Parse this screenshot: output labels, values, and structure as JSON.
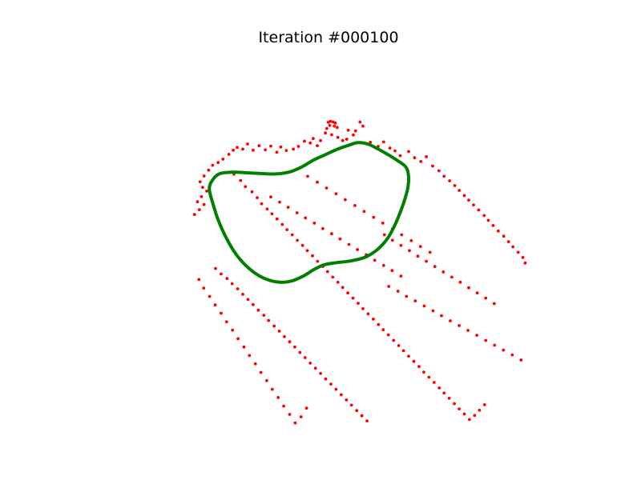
{
  "chart_data": {
    "type": "scatter",
    "title": "Iteration #000100",
    "xlabel": "",
    "ylabel": "",
    "axes_visible": false,
    "grid": false,
    "xlim": [
      0,
      100
    ],
    "ylim": [
      0,
      100
    ],
    "series": [
      {
        "kind": "points",
        "color": "#ff0000",
        "points": [
          [
            45.6,
            87.7
          ],
          [
            46.2,
            88.0
          ],
          [
            46.9,
            87.8
          ],
          [
            47.5,
            87.5
          ],
          [
            46.0,
            86.8
          ],
          [
            47.2,
            86.6
          ],
          [
            45.2,
            85.9
          ],
          [
            48.0,
            86.2
          ],
          [
            44.8,
            84.6
          ],
          [
            46.5,
            84.1
          ],
          [
            54.2,
            87.8
          ],
          [
            55.0,
            86.6
          ],
          [
            51.0,
            85.4
          ],
          [
            53.0,
            85.2
          ],
          [
            50.6,
            82.8
          ],
          [
            52.4,
            84.0
          ],
          [
            49.5,
            82.4
          ],
          [
            48.2,
            83.3
          ],
          [
            43.5,
            82.4
          ],
          [
            41.5,
            83.0
          ],
          [
            40.7,
            81.7
          ],
          [
            42.6,
            80.9
          ],
          [
            39.1,
            82.2
          ],
          [
            37.5,
            80.7
          ],
          [
            36.1,
            79.9
          ],
          [
            34.2,
            79.5
          ],
          [
            32.7,
            80.5
          ],
          [
            31.6,
            79.0
          ],
          [
            30.0,
            80.8
          ],
          [
            28.5,
            79.7
          ],
          [
            26.8,
            80.9
          ],
          [
            25.2,
            79.6
          ],
          [
            23.7,
            81.4
          ],
          [
            22.4,
            79.9
          ],
          [
            20.9,
            80.4
          ],
          [
            19.8,
            79.6
          ],
          [
            18.6,
            78.4
          ],
          [
            17.0,
            77.0
          ],
          [
            15.7,
            76.0
          ],
          [
            14.2,
            75.2
          ],
          [
            13.1,
            73.8
          ],
          [
            11.9,
            72.1
          ],
          [
            10.8,
            70.4
          ],
          [
            11.5,
            68.8
          ],
          [
            12.6,
            67.7
          ],
          [
            11.2,
            66.1
          ],
          [
            10.1,
            64.6
          ],
          [
            11.9,
            63.8
          ],
          [
            10.6,
            62.3
          ],
          [
            9.3,
            60.9
          ],
          [
            20.0,
            72.6
          ],
          [
            21.8,
            70.8
          ],
          [
            23.1,
            69.0
          ],
          [
            24.9,
            67.5
          ],
          [
            26.3,
            65.8
          ],
          [
            27.5,
            64.0
          ],
          [
            29.0,
            62.5
          ],
          [
            30.3,
            61.1
          ],
          [
            31.7,
            59.6
          ],
          [
            33.1,
            58.0
          ],
          [
            34.4,
            56.5
          ],
          [
            35.8,
            55.0
          ],
          [
            37.2,
            53.4
          ],
          [
            38.6,
            51.9
          ],
          [
            39.9,
            50.4
          ],
          [
            41.3,
            48.9
          ],
          [
            42.7,
            47.3
          ],
          [
            44.1,
            45.8
          ],
          [
            45.4,
            44.3
          ],
          [
            46.8,
            42.7
          ],
          [
            48.2,
            41.2
          ],
          [
            49.5,
            39.7
          ],
          [
            50.9,
            38.1
          ],
          [
            52.3,
            36.6
          ],
          [
            53.7,
            35.1
          ],
          [
            55.0,
            33.5
          ],
          [
            56.4,
            32.0
          ],
          [
            57.8,
            30.5
          ],
          [
            59.2,
            28.9
          ],
          [
            60.5,
            27.4
          ],
          [
            61.9,
            25.9
          ],
          [
            63.3,
            24.3
          ],
          [
            64.7,
            22.8
          ],
          [
            66.0,
            21.3
          ],
          [
            67.4,
            19.7
          ],
          [
            68.8,
            18.2
          ],
          [
            70.2,
            16.7
          ],
          [
            71.5,
            15.1
          ],
          [
            72.9,
            13.6
          ],
          [
            74.3,
            12.1
          ],
          [
            75.7,
            10.5
          ],
          [
            77.0,
            9.0
          ],
          [
            78.4,
            7.5
          ],
          [
            79.8,
            5.9
          ],
          [
            81.1,
            4.4
          ],
          [
            82.5,
            2.9
          ],
          [
            83.9,
            1.3
          ],
          [
            85.3,
            2.5
          ],
          [
            86.6,
            4.0
          ],
          [
            88.0,
            5.6
          ],
          [
            57.0,
            81.9
          ],
          [
            59.1,
            80.7
          ],
          [
            60.6,
            82.0
          ],
          [
            62.3,
            80.2
          ],
          [
            63.7,
            79.4
          ],
          [
            65.1,
            78.0
          ],
          [
            67.4,
            79.2
          ],
          [
            69.0,
            77.4
          ],
          [
            70.7,
            76.3
          ],
          [
            72.2,
            77.7
          ],
          [
            73.9,
            75.0
          ],
          [
            75.6,
            73.6
          ],
          [
            77.0,
            72.0
          ],
          [
            78.5,
            70.7
          ],
          [
            79.9,
            69.3
          ],
          [
            81.1,
            67.9
          ],
          [
            82.5,
            66.4
          ],
          [
            83.7,
            65.1
          ],
          [
            85.0,
            63.7
          ],
          [
            86.4,
            62.2
          ],
          [
            87.9,
            60.6
          ],
          [
            89.0,
            59.2
          ],
          [
            90.3,
            57.7
          ],
          [
            91.7,
            56.1
          ],
          [
            93.2,
            54.6
          ],
          [
            94.5,
            53.0
          ],
          [
            95.7,
            51.5
          ],
          [
            97.1,
            49.9
          ],
          [
            98.4,
            48.4
          ],
          [
            99.0,
            46.8
          ],
          [
            15.0,
            45.2
          ],
          [
            16.5,
            43.6
          ],
          [
            18.1,
            42.3
          ],
          [
            19.5,
            40.8
          ],
          [
            21.0,
            39.3
          ],
          [
            22.4,
            37.7
          ],
          [
            23.8,
            36.2
          ],
          [
            25.2,
            34.7
          ],
          [
            26.6,
            33.1
          ],
          [
            28.1,
            31.6
          ],
          [
            29.4,
            30.1
          ],
          [
            30.9,
            28.5
          ],
          [
            32.3,
            27.0
          ],
          [
            33.7,
            25.4
          ],
          [
            35.1,
            23.9
          ],
          [
            36.5,
            22.4
          ],
          [
            37.9,
            20.8
          ],
          [
            39.3,
            19.3
          ],
          [
            40.7,
            17.7
          ],
          [
            42.1,
            16.2
          ],
          [
            43.5,
            14.7
          ],
          [
            44.9,
            13.1
          ],
          [
            46.3,
            11.6
          ],
          [
            47.7,
            10.1
          ],
          [
            49.1,
            8.5
          ],
          [
            50.5,
            7.0
          ],
          [
            51.9,
            5.5
          ],
          [
            53.3,
            3.9
          ],
          [
            54.7,
            2.4
          ],
          [
            56.1,
            0.9
          ],
          [
            10.5,
            42.0
          ],
          [
            11.8,
            39.5
          ],
          [
            13.4,
            37.1
          ],
          [
            14.9,
            34.6
          ],
          [
            16.5,
            32.2
          ],
          [
            18.0,
            29.7
          ],
          [
            19.6,
            27.3
          ],
          [
            21.1,
            24.8
          ],
          [
            22.7,
            22.4
          ],
          [
            24.2,
            19.9
          ],
          [
            25.8,
            17.5
          ],
          [
            27.3,
            15.0
          ],
          [
            28.9,
            12.6
          ],
          [
            30.4,
            10.1
          ],
          [
            32.0,
            7.7
          ],
          [
            33.5,
            5.2
          ],
          [
            35.1,
            2.8
          ],
          [
            36.6,
            0.3
          ],
          [
            38.2,
            2.1
          ],
          [
            39.7,
            4.6
          ],
          [
            62.0,
            40.0
          ],
          [
            64.5,
            38.6
          ],
          [
            66.8,
            37.1
          ],
          [
            69.2,
            35.8
          ],
          [
            71.6,
            34.3
          ],
          [
            74.0,
            32.9
          ],
          [
            76.3,
            31.5
          ],
          [
            78.7,
            30.0
          ],
          [
            81.1,
            28.6
          ],
          [
            83.5,
            27.2
          ],
          [
            85.9,
            25.8
          ],
          [
            88.3,
            24.3
          ],
          [
            90.7,
            22.9
          ],
          [
            93.1,
            21.5
          ],
          [
            95.5,
            20.1
          ],
          [
            97.9,
            18.6
          ],
          [
            60.8,
            55.0
          ],
          [
            63.0,
            53.4
          ],
          [
            65.3,
            51.9
          ],
          [
            67.6,
            50.4
          ],
          [
            69.9,
            48.8
          ],
          [
            72.2,
            47.3
          ],
          [
            74.5,
            45.8
          ],
          [
            76.8,
            44.2
          ],
          [
            79.1,
            42.7
          ],
          [
            81.4,
            41.2
          ],
          [
            83.7,
            39.6
          ],
          [
            86.0,
            38.1
          ],
          [
            88.3,
            36.6
          ],
          [
            90.6,
            35.0
          ],
          [
            30.0,
            66.0
          ],
          [
            32.4,
            64.5
          ],
          [
            34.7,
            63.0
          ],
          [
            37.1,
            61.4
          ],
          [
            39.4,
            59.9
          ],
          [
            41.8,
            58.4
          ],
          [
            44.1,
            56.8
          ],
          [
            46.5,
            55.3
          ],
          [
            48.8,
            53.8
          ],
          [
            51.2,
            52.2
          ],
          [
            53.5,
            50.7
          ],
          [
            55.9,
            49.2
          ],
          [
            58.2,
            47.6
          ],
          [
            60.6,
            46.1
          ],
          [
            62.9,
            44.6
          ],
          [
            65.3,
            43.0
          ],
          [
            40.0,
            72.0
          ],
          [
            42.6,
            70.3
          ],
          [
            45.1,
            68.6
          ],
          [
            47.7,
            66.9
          ],
          [
            50.2,
            65.2
          ],
          [
            52.8,
            63.5
          ],
          [
            55.3,
            61.8
          ],
          [
            57.9,
            60.1
          ],
          [
            60.4,
            58.4
          ],
          [
            63.0,
            56.7
          ],
          [
            65.5,
            55.0
          ],
          [
            68.1,
            53.3
          ],
          [
            70.6,
            51.6
          ],
          [
            73.2,
            49.9
          ]
        ]
      },
      {
        "kind": "closed-curve",
        "color": "#008000",
        "points": [
          [
            14.3,
            71.1
          ],
          [
            16.2,
            72.8
          ],
          [
            19.8,
            73.2
          ],
          [
            24.0,
            73.0
          ],
          [
            27.8,
            72.8
          ],
          [
            31.5,
            72.7
          ],
          [
            35.2,
            73.3
          ],
          [
            38.5,
            74.8
          ],
          [
            41.7,
            76.8
          ],
          [
            44.8,
            78.3
          ],
          [
            47.9,
            79.8
          ],
          [
            51.0,
            81.0
          ],
          [
            53.6,
            81.8
          ],
          [
            56.3,
            81.4
          ],
          [
            59.0,
            80.0
          ],
          [
            61.8,
            78.3
          ],
          [
            64.6,
            76.4
          ],
          [
            66.7,
            74.6
          ],
          [
            67.4,
            71.8
          ],
          [
            67.1,
            68.3
          ],
          [
            66.2,
            64.8
          ],
          [
            65.0,
            61.2
          ],
          [
            63.6,
            57.7
          ],
          [
            61.7,
            54.0
          ],
          [
            59.0,
            50.8
          ],
          [
            55.6,
            48.5
          ],
          [
            51.6,
            47.4
          ],
          [
            47.8,
            46.9
          ],
          [
            44.5,
            46.3
          ],
          [
            41.7,
            44.9
          ],
          [
            38.8,
            43.0
          ],
          [
            35.4,
            41.5
          ],
          [
            31.6,
            41.3
          ],
          [
            27.7,
            42.6
          ],
          [
            24.1,
            45.2
          ],
          [
            20.8,
            49.0
          ],
          [
            18.0,
            53.9
          ],
          [
            15.8,
            59.1
          ],
          [
            14.3,
            64.0
          ],
          [
            13.3,
            68.4
          ]
        ]
      }
    ]
  }
}
